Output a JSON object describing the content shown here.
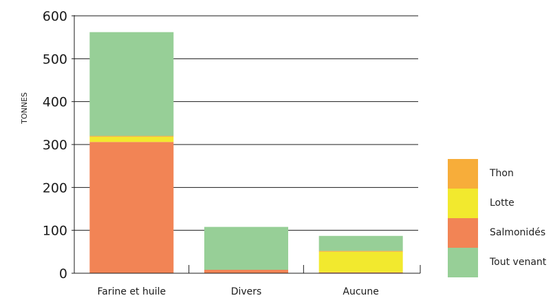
{
  "chart_data": {
    "type": "bar",
    "stacked": true,
    "categories": [
      "Farine et huile",
      "Divers",
      "Aucune"
    ],
    "series": [
      {
        "name": "Tout venant",
        "color": "#97cf97",
        "values": [
          242,
          100,
          35
        ]
      },
      {
        "name": "Salmonidés",
        "color": "#f28455",
        "values": [
          306,
          8,
          2
        ]
      },
      {
        "name": "Lotte",
        "color": "#f2e92e",
        "values": [
          12,
          0,
          48
        ]
      },
      {
        "name": "Thon",
        "color": "#f7ad3a",
        "values": [
          2,
          0,
          2
        ]
      }
    ],
    "stack_order": [
      "Salmonidés",
      "Lotte",
      "Thon",
      "Tout venant"
    ],
    "ylabel": "TONNES",
    "ylim": [
      0,
      600
    ],
    "yticks": [
      0,
      100,
      200,
      300,
      400,
      500,
      600
    ],
    "grid": true,
    "legend_position": "right",
    "legend_order": [
      "Thon",
      "Lotte",
      "Salmonidés",
      "Tout venant"
    ]
  }
}
